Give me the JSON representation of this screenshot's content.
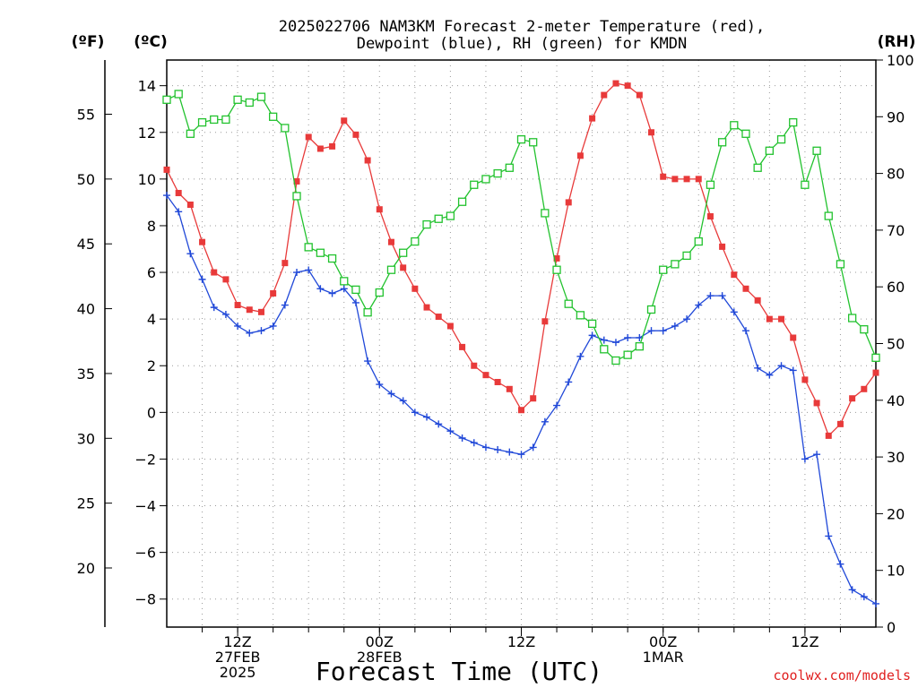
{
  "chart_data": {
    "type": "line",
    "title_line1": "2025022706 NAM3KM Forecast 2-meter Temperature (red),",
    "title_line2": "Dewpoint (blue), RH (green) for KMDN",
    "left_outer_unit": "(ºF)",
    "left_unit": "(ºC)",
    "right_unit": "(RH)",
    "xlabel": "Forecast Time (UTC)",
    "credit": "coolwx.com/models",
    "x_hours_start": 6,
    "x_hours_end": 66,
    "celsius_range": [
      -9.2,
      15.1
    ],
    "rh_range": [
      0,
      100
    ],
    "x_ticks": [
      {
        "hour": 12,
        "lines": [
          "12Z",
          "27FEB",
          "2025"
        ]
      },
      {
        "hour": 24,
        "lines": [
          "00Z",
          "28FEB"
        ]
      },
      {
        "hour": 36,
        "lines": [
          "12Z"
        ]
      },
      {
        "hour": 48,
        "lines": [
          "00Z",
          "1MAR"
        ]
      },
      {
        "hour": 60,
        "lines": [
          "12Z"
        ]
      }
    ],
    "celsius_ticks": [
      -8,
      -6,
      -4,
      -2,
      0,
      2,
      4,
      6,
      8,
      10,
      12,
      14
    ],
    "fahrenheit_ticks": [
      20,
      25,
      30,
      35,
      40,
      45,
      50,
      55
    ],
    "rh_ticks": [
      0,
      10,
      20,
      30,
      40,
      50,
      60,
      70,
      80,
      90,
      100
    ],
    "series": [
      {
        "name": "Temperature",
        "unit": "C",
        "color": "#e83a3a",
        "marker": "filled-square",
        "points": [
          [
            6,
            10.4
          ],
          [
            7,
            9.4
          ],
          [
            8,
            8.9
          ],
          [
            9,
            7.3
          ],
          [
            10,
            6.0
          ],
          [
            11,
            5.7
          ],
          [
            12,
            4.6
          ],
          [
            13,
            4.4
          ],
          [
            14,
            4.3
          ],
          [
            15,
            5.1
          ],
          [
            16,
            6.4
          ],
          [
            17,
            9.9
          ],
          [
            18,
            11.8
          ],
          [
            19,
            11.3
          ],
          [
            20,
            11.4
          ],
          [
            21,
            12.5
          ],
          [
            22,
            11.9
          ],
          [
            23,
            10.8
          ],
          [
            24,
            8.7
          ],
          [
            25,
            7.3
          ],
          [
            26,
            6.2
          ],
          [
            27,
            5.3
          ],
          [
            28,
            4.5
          ],
          [
            29,
            4.1
          ],
          [
            30,
            3.7
          ],
          [
            31,
            2.8
          ],
          [
            32,
            2.0
          ],
          [
            33,
            1.6
          ],
          [
            34,
            1.3
          ],
          [
            35,
            1.0
          ],
          [
            36,
            0.1
          ],
          [
            37,
            0.6
          ],
          [
            38,
            3.9
          ],
          [
            39,
            6.6
          ],
          [
            40,
            9.0
          ],
          [
            41,
            11.0
          ],
          [
            42,
            12.6
          ],
          [
            43,
            13.6
          ],
          [
            44,
            14.1
          ],
          [
            45,
            14.0
          ],
          [
            46,
            13.6
          ],
          [
            47,
            12.0
          ],
          [
            48,
            10.1
          ],
          [
            49,
            10.0
          ],
          [
            50,
            10.0
          ],
          [
            51,
            10.0
          ],
          [
            52,
            8.4
          ],
          [
            53,
            7.1
          ],
          [
            54,
            5.9
          ],
          [
            55,
            5.3
          ],
          [
            56,
            4.8
          ],
          [
            57,
            4.0
          ],
          [
            58,
            4.0
          ],
          [
            59,
            3.2
          ],
          [
            60,
            1.4
          ],
          [
            61,
            0.4
          ],
          [
            62,
            -1.0
          ],
          [
            63,
            -0.5
          ],
          [
            64,
            0.6
          ],
          [
            65,
            1.0
          ],
          [
            66,
            1.7
          ]
        ]
      },
      {
        "name": "Dewpoint",
        "unit": "C",
        "color": "#2048d8",
        "marker": "plus",
        "points": [
          [
            6,
            9.3
          ],
          [
            7,
            8.6
          ],
          [
            8,
            6.8
          ],
          [
            9,
            5.7
          ],
          [
            10,
            4.5
          ],
          [
            11,
            4.2
          ],
          [
            12,
            3.7
          ],
          [
            13,
            3.4
          ],
          [
            14,
            3.5
          ],
          [
            15,
            3.7
          ],
          [
            16,
            4.6
          ],
          [
            17,
            6.0
          ],
          [
            18,
            6.1
          ],
          [
            19,
            5.3
          ],
          [
            20,
            5.1
          ],
          [
            21,
            5.3
          ],
          [
            22,
            4.7
          ],
          [
            23,
            2.2
          ],
          [
            24,
            1.2
          ],
          [
            25,
            0.8
          ],
          [
            26,
            0.5
          ],
          [
            27,
            0.0
          ],
          [
            28,
            -0.2
          ],
          [
            29,
            -0.5
          ],
          [
            30,
            -0.8
          ],
          [
            31,
            -1.1
          ],
          [
            32,
            -1.3
          ],
          [
            33,
            -1.5
          ],
          [
            34,
            -1.6
          ],
          [
            35,
            -1.7
          ],
          [
            36,
            -1.8
          ],
          [
            37,
            -1.5
          ],
          [
            38,
            -0.4
          ],
          [
            39,
            0.3
          ],
          [
            40,
            1.3
          ],
          [
            41,
            2.4
          ],
          [
            42,
            3.3
          ],
          [
            43,
            3.1
          ],
          [
            44,
            3.0
          ],
          [
            45,
            3.2
          ],
          [
            46,
            3.2
          ],
          [
            47,
            3.5
          ],
          [
            48,
            3.5
          ],
          [
            49,
            3.7
          ],
          [
            50,
            4.0
          ],
          [
            51,
            4.6
          ],
          [
            52,
            5.0
          ],
          [
            53,
            5.0
          ],
          [
            54,
            4.3
          ],
          [
            55,
            3.5
          ],
          [
            56,
            1.9
          ],
          [
            57,
            1.6
          ],
          [
            58,
            2.0
          ],
          [
            59,
            1.8
          ],
          [
            60,
            -2.0
          ],
          [
            61,
            -1.8
          ],
          [
            62,
            -5.3
          ],
          [
            63,
            -6.5
          ],
          [
            64,
            -7.6
          ],
          [
            65,
            -7.9
          ],
          [
            66,
            -8.2
          ]
        ]
      },
      {
        "name": "RH",
        "unit": "%",
        "color": "#22c22e",
        "marker": "open-square",
        "points": [
          [
            6,
            93
          ],
          [
            7,
            94
          ],
          [
            8,
            87
          ],
          [
            9,
            89
          ],
          [
            10,
            89.5
          ],
          [
            11,
            89.5
          ],
          [
            12,
            93
          ],
          [
            13,
            92.5
          ],
          [
            14,
            93.5
          ],
          [
            15,
            90
          ],
          [
            16,
            88
          ],
          [
            17,
            76
          ],
          [
            18,
            67
          ],
          [
            19,
            66
          ],
          [
            20,
            65
          ],
          [
            21,
            61
          ],
          [
            22,
            59.5
          ],
          [
            23,
            55.5
          ],
          [
            24,
            59
          ],
          [
            25,
            63
          ],
          [
            26,
            66
          ],
          [
            27,
            68
          ],
          [
            28,
            71
          ],
          [
            29,
            72
          ],
          [
            30,
            72.5
          ],
          [
            31,
            75
          ],
          [
            32,
            78
          ],
          [
            33,
            79
          ],
          [
            34,
            80
          ],
          [
            35,
            81
          ],
          [
            36,
            86
          ],
          [
            37,
            85.5
          ],
          [
            38,
            73
          ],
          [
            39,
            63
          ],
          [
            40,
            57
          ],
          [
            41,
            55
          ],
          [
            42,
            53.5
          ],
          [
            43,
            49
          ],
          [
            44,
            47
          ],
          [
            45,
            48
          ],
          [
            46,
            49.5
          ],
          [
            47,
            56
          ],
          [
            48,
            63
          ],
          [
            49,
            64
          ],
          [
            50,
            65.5
          ],
          [
            51,
            68
          ],
          [
            52,
            78
          ],
          [
            53,
            85.5
          ],
          [
            54,
            88.5
          ],
          [
            55,
            87
          ],
          [
            56,
            81
          ],
          [
            57,
            84
          ],
          [
            58,
            86
          ],
          [
            59,
            89
          ],
          [
            60,
            78
          ],
          [
            61,
            84
          ],
          [
            62,
            72.5
          ],
          [
            63,
            64
          ],
          [
            64,
            54.5
          ],
          [
            65,
            52.5
          ],
          [
            66,
            47.5
          ]
        ]
      }
    ]
  }
}
